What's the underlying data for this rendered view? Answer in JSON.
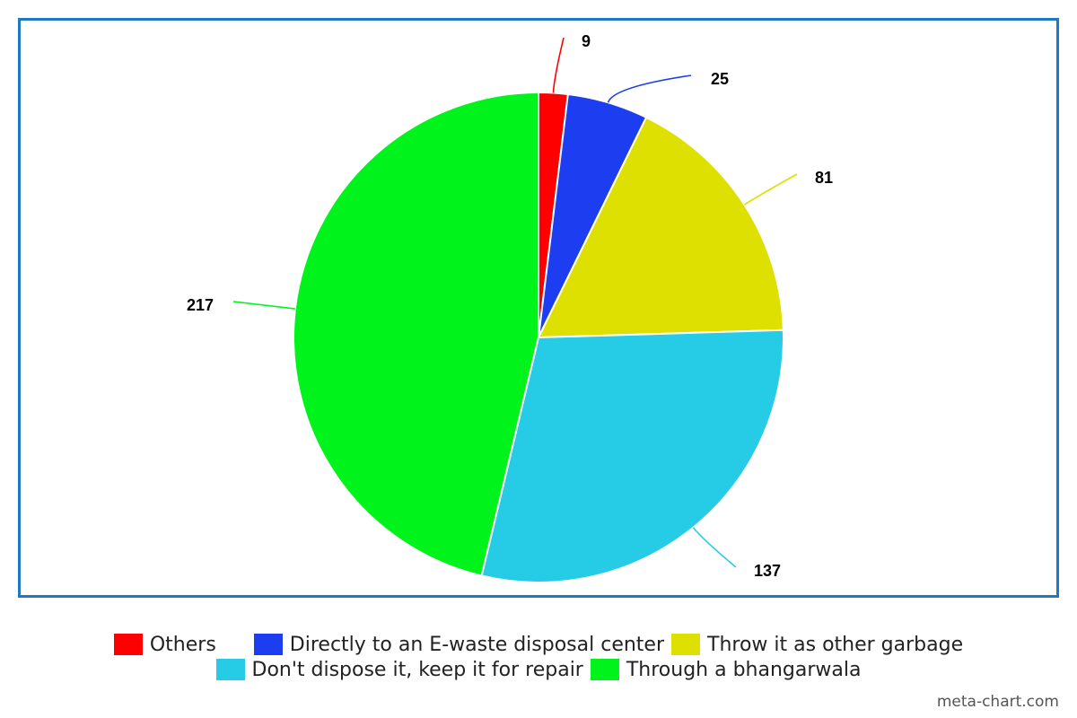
{
  "chart_data": {
    "type": "pie",
    "title": "",
    "legend_position": "bottom",
    "slices": [
      {
        "label": "Others",
        "value": 9,
        "color": "#ff0000"
      },
      {
        "label": "Directly to an E-waste disposal center",
        "value": 25,
        "color": "#1d3ef0"
      },
      {
        "label": "Throw it as other garbage",
        "value": 81,
        "color": "#dde000"
      },
      {
        "label": "Don't dispose it, keep it for repair",
        "value": 137,
        "color": "#26cce6"
      },
      {
        "label": "Through a bhangarwala",
        "value": 217,
        "color": "#00f31a"
      }
    ]
  },
  "frame_color": "#1f78c1",
  "watermark": "meta-chart.com"
}
